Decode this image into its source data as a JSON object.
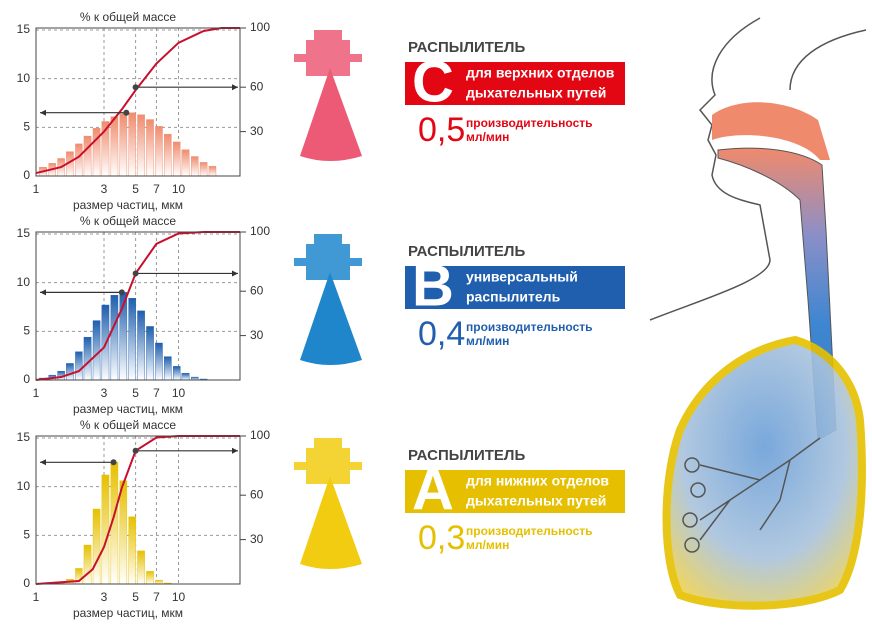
{
  "chart_data": [
    {
      "type": "bar",
      "title": "% к общей массе",
      "xlabel": "размер частиц, мкм",
      "xscale": "log",
      "grid": true,
      "xlim": [
        1,
        27
      ],
      "xticks": [
        1,
        3,
        5,
        7,
        10
      ],
      "ylim": [
        0,
        15.2
      ],
      "yticks": [
        0,
        5,
        10,
        15
      ],
      "y2lim": [
        0,
        100
      ],
      "y2ticks": [
        30,
        60,
        100
      ],
      "series": [
        {
          "color": "#ef8c6e",
          "x": [
            1.12,
            1.3,
            1.5,
            1.73,
            2.0,
            2.3,
            2.66,
            3.07,
            3.55,
            4.1,
            4.73,
            5.46,
            6.31,
            7.29,
            8.41,
            9.72,
            11.2,
            13.0,
            15.0,
            17.3
          ],
          "values": [
            0.9,
            1.3,
            1.8,
            2.5,
            3.3,
            4.1,
            4.9,
            5.6,
            6.1,
            6.4,
            6.5,
            6.3,
            5.8,
            5.1,
            4.3,
            3.5,
            2.7,
            2.0,
            1.4,
            1.0
          ]
        },
        {
          "type": "line",
          "axis": "y2",
          "color": "#c8102e",
          "x": [
            1,
            1.5,
            2,
            3,
            4,
            5,
            7,
            10,
            15,
            20,
            27
          ],
          "values": [
            2,
            6,
            13,
            30,
            45,
            58,
            76,
            90,
            98,
            100,
            100
          ]
        }
      ],
      "markers": [
        {
          "x": 4.3,
          "y": 6.5,
          "dir": "left"
        },
        {
          "x": 5,
          "y": 60,
          "axis": "y2",
          "dir": "right"
        }
      ]
    },
    {
      "type": "bar",
      "title": "% к общей массе",
      "xlabel": "размер частиц, мкм",
      "xscale": "log",
      "grid": true,
      "xlim": [
        1,
        27
      ],
      "xticks": [
        1,
        3,
        5,
        7,
        10
      ],
      "ylim": [
        0,
        15.2
      ],
      "yticks": [
        0,
        5,
        10,
        15
      ],
      "y2lim": [
        0,
        100
      ],
      "y2ticks": [
        30,
        60,
        100
      ],
      "series": [
        {
          "color": "#1f5fae",
          "x": [
            1.12,
            1.3,
            1.5,
            1.73,
            2.0,
            2.3,
            2.66,
            3.07,
            3.55,
            4.1,
            4.73,
            5.46,
            6.31,
            7.29,
            8.41,
            9.72,
            11.2,
            13.0,
            15.0
          ],
          "values": [
            0.2,
            0.5,
            0.9,
            1.7,
            2.9,
            4.4,
            6.1,
            7.7,
            8.7,
            9.0,
            8.4,
            7.1,
            5.5,
            3.8,
            2.4,
            1.4,
            0.7,
            0.3,
            0.1
          ]
        },
        {
          "type": "line",
          "axis": "y2",
          "color": "#c8102e",
          "x": [
            1,
            1.5,
            2,
            3,
            4,
            5,
            7,
            10,
            15,
            27
          ],
          "values": [
            0,
            2,
            6,
            22,
            48,
            72,
            92,
            99,
            100,
            100
          ]
        }
      ],
      "markers": [
        {
          "x": 4,
          "y": 9,
          "dir": "left"
        },
        {
          "x": 5,
          "y": 72,
          "axis": "y2",
          "dir": "right"
        }
      ]
    },
    {
      "type": "bar",
      "title": "% к общей массе",
      "xlabel": "размер частиц, мкм",
      "xscale": "log",
      "grid": true,
      "xlim": [
        1,
        27
      ],
      "xticks": [
        1,
        3,
        5,
        7,
        10
      ],
      "ylim": [
        0,
        15.2
      ],
      "yticks": [
        0,
        5,
        10,
        15
      ],
      "y2lim": [
        0,
        100
      ],
      "y2ticks": [
        30,
        60,
        100
      ],
      "series": [
        {
          "color": "#e6c000",
          "x": [
            1.5,
            1.73,
            2.0,
            2.3,
            2.66,
            3.07,
            3.55,
            4.1,
            4.73,
            5.46,
            6.31,
            7.29,
            8.41
          ],
          "values": [
            0.1,
            0.5,
            1.6,
            4.0,
            7.7,
            11.2,
            12.5,
            10.6,
            6.9,
            3.4,
            1.3,
            0.4,
            0.1
          ]
        },
        {
          "type": "line",
          "axis": "y2",
          "color": "#c8102e",
          "x": [
            1,
            2,
            2.5,
            3,
            3.5,
            4,
            5,
            7,
            10,
            27
          ],
          "values": [
            0,
            2,
            10,
            25,
            45,
            65,
            90,
            99,
            100,
            100
          ]
        }
      ],
      "markers": [
        {
          "x": 3.5,
          "y": 12.5,
          "dir": "left"
        },
        {
          "x": 5,
          "y": 90,
          "axis": "y2",
          "dir": "right"
        }
      ]
    }
  ],
  "nebulizers": [
    {
      "heading": "РАСПЫЛИТЕЛЬ",
      "letter": "C",
      "description": [
        "для верхних отделов",
        "дыхательных путей"
      ],
      "rate": "0,5",
      "rate_label": "производительность",
      "unit": "мл/мин",
      "color": "#e30613",
      "icon_color": "#ec5a75"
    },
    {
      "heading": "РАСПЫЛИТЕЛЬ",
      "letter": "B",
      "description": [
        "универсальный",
        "распылитель"
      ],
      "rate": "0,4",
      "rate_label": "производительность",
      "unit": "мл/мин",
      "color": "#1f5fae",
      "icon_color": "#1f86cc"
    },
    {
      "heading": "РАСПЫЛИТЕЛЬ",
      "letter": "A",
      "description": [
        "для нижних отделов",
        "дыхательных путей"
      ],
      "rate": "0,3",
      "rate_label": "производительность",
      "unit": "мл/мин",
      "color": "#e6c000",
      "icon_color": "#f2cc10"
    }
  ]
}
